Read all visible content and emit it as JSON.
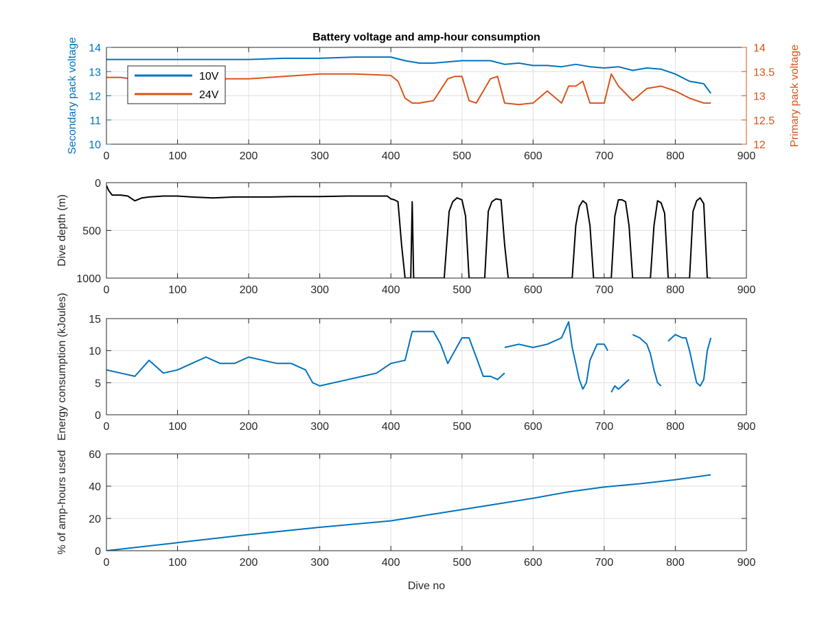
{
  "figure": {
    "title": "Battery voltage and amp-hour consumption",
    "xlabel": "Dive no"
  },
  "colors": {
    "blue": "#0072BD",
    "orange": "#D95319",
    "black": "#000000",
    "grid": "#DFDFDF",
    "axis": "#262626"
  },
  "chart_data": [
    {
      "type": "line",
      "title": "Battery voltage and amp-hour consumption",
      "xlim": [
        0,
        900
      ],
      "xticks": [
        0,
        100,
        200,
        300,
        400,
        500,
        600,
        700,
        800,
        900
      ],
      "ylabel": "Secondary pack voltage",
      "ylim": [
        10,
        14
      ],
      "yticks": [
        10,
        11,
        12,
        13,
        14
      ],
      "ylabel_right": "Primary pack voltage",
      "ylim_right": [
        12,
        14
      ],
      "yticks_right": [
        12,
        12.5,
        13,
        13.5,
        14
      ],
      "legend": {
        "placement": "top-left",
        "entries": [
          "10V",
          "24V"
        ]
      },
      "grid": true,
      "series": [
        {
          "name": "10V",
          "axis": "left",
          "color": "#0072BD",
          "x": [
            0,
            20,
            50,
            100,
            150,
            200,
            250,
            300,
            350,
            400,
            420,
            440,
            460,
            480,
            500,
            520,
            540,
            560,
            580,
            600,
            620,
            640,
            660,
            680,
            700,
            720,
            740,
            760,
            780,
            800,
            820,
            840,
            850
          ],
          "y": [
            13.5,
            13.5,
            13.5,
            13.5,
            13.5,
            13.5,
            13.55,
            13.55,
            13.6,
            13.6,
            13.45,
            13.35,
            13.35,
            13.4,
            13.45,
            13.45,
            13.45,
            13.3,
            13.35,
            13.25,
            13.25,
            13.2,
            13.3,
            13.2,
            13.15,
            13.2,
            13.05,
            13.15,
            13.1,
            12.9,
            12.6,
            12.5,
            12.1
          ]
        },
        {
          "name": "24V",
          "axis": "right",
          "color": "#D95319",
          "x": [
            0,
            20,
            50,
            100,
            150,
            200,
            250,
            300,
            350,
            400,
            410,
            420,
            430,
            440,
            460,
            480,
            490,
            500,
            510,
            520,
            540,
            550,
            560,
            580,
            600,
            620,
            640,
            650,
            660,
            670,
            680,
            700,
            710,
            720,
            740,
            760,
            780,
            800,
            820,
            840,
            850
          ],
          "y": [
            13.38,
            13.38,
            13.32,
            13.35,
            13.35,
            13.35,
            13.4,
            13.45,
            13.45,
            13.42,
            13.3,
            12.95,
            12.85,
            12.85,
            12.9,
            13.35,
            13.4,
            13.4,
            12.9,
            12.85,
            13.35,
            13.4,
            12.85,
            12.82,
            12.85,
            13.1,
            12.85,
            13.2,
            13.2,
            13.3,
            12.85,
            12.85,
            13.45,
            13.2,
            12.9,
            13.15,
            13.2,
            13.1,
            12.95,
            12.85,
            12.85
          ]
        }
      ]
    },
    {
      "type": "line",
      "ylabel": "Dive depth (m)",
      "xlim": [
        0,
        900
      ],
      "xticks": [
        0,
        100,
        200,
        300,
        400,
        500,
        600,
        700,
        800,
        900
      ],
      "ylim": [
        0,
        1000
      ],
      "y_reversed": true,
      "yticks": [
        0,
        500,
        1000
      ],
      "grid": true,
      "series": [
        {
          "color": "#000000",
          "x": [
            0,
            3,
            8,
            20,
            30,
            40,
            50,
            60,
            80,
            100,
            120,
            150,
            180,
            200,
            230,
            260,
            300,
            340,
            380,
            395,
            400,
            405,
            410,
            415,
            420,
            425,
            428,
            430,
            432,
            435,
            440,
            460,
            475,
            482,
            487,
            493,
            500,
            505,
            510,
            515,
            520,
            532,
            537,
            542,
            548,
            555,
            560,
            565,
            600,
            640,
            655,
            660,
            665,
            670,
            675,
            680,
            685,
            700,
            710,
            715,
            720,
            725,
            730,
            735,
            740,
            765,
            770,
            775,
            780,
            785,
            790,
            795,
            800,
            820,
            825,
            830,
            835,
            840,
            845,
            850
          ],
          "y": [
            30,
            80,
            130,
            130,
            140,
            190,
            160,
            150,
            140,
            140,
            150,
            160,
            150,
            150,
            150,
            145,
            145,
            140,
            140,
            140,
            170,
            180,
            200,
            650,
            1000,
            1000,
            1000,
            200,
            1000,
            1000,
            1000,
            1000,
            1000,
            300,
            200,
            160,
            180,
            350,
            1000,
            1000,
            1000,
            1000,
            300,
            200,
            170,
            180,
            650,
            1000,
            1000,
            1000,
            1000,
            450,
            250,
            190,
            220,
            450,
            1000,
            1000,
            1000,
            350,
            180,
            180,
            200,
            450,
            1000,
            1000,
            450,
            190,
            210,
            320,
            1000,
            1000,
            1000,
            1000,
            300,
            190,
            160,
            220,
            1000,
            1000
          ]
        }
      ]
    },
    {
      "type": "line",
      "ylabel": "Energy consumption (kJoules)",
      "xlim": [
        0,
        900
      ],
      "xticks": [
        0,
        100,
        200,
        300,
        400,
        500,
        600,
        700,
        800,
        900
      ],
      "ylim": [
        0,
        15
      ],
      "yticks": [
        0,
        5,
        10,
        15
      ],
      "grid": true,
      "series": [
        {
          "color": "#0072BD",
          "segments": [
            {
              "x": [
                0,
                20,
                40,
                60,
                80,
                100,
                120,
                140,
                160,
                180,
                200,
                220,
                240,
                260,
                280,
                290,
                300,
                320,
                340,
                360,
                380,
                400,
                420,
                430,
                432,
                440,
                460,
                470,
                480,
                490,
                500,
                510,
                520,
                530,
                540,
                550,
                560
              ],
              "y": [
                7,
                6.5,
                6,
                8.5,
                6.5,
                7,
                8,
                9,
                8,
                8,
                9,
                8.5,
                8,
                8,
                7,
                5,
                4.5,
                5,
                5.5,
                6,
                6.5,
                8,
                8.5,
                13,
                13,
                13,
                13,
                11,
                8,
                10,
                12,
                12,
                9,
                6,
                6,
                5.5,
                6.5
              ]
            },
            {
              "x": [
                560,
                580,
                600,
                620,
                640,
                650,
                655,
                660,
                665,
                670,
                675,
                680,
                690,
                700,
                705
              ],
              "y": [
                10.5,
                11,
                10.5,
                11,
                12,
                14.5,
                10.5,
                8,
                5.5,
                4,
                5,
                8.5,
                11,
                11,
                10
              ]
            },
            {
              "x": [
                710,
                715,
                720,
                730,
                735
              ],
              "y": [
                3.5,
                4.5,
                4,
                5,
                5.5
              ]
            },
            {
              "x": [
                740,
                750,
                760,
                765,
                770,
                775,
                780
              ],
              "y": [
                12.5,
                12,
                11,
                9.5,
                7,
                5,
                4.5
              ]
            },
            {
              "x": [
                790,
                800,
                810,
                815,
                820,
                825,
                830,
                835,
                840,
                845,
                850
              ],
              "y": [
                11.5,
                12.5,
                12,
                12,
                10,
                7.5,
                5,
                4.5,
                5.5,
                10,
                12
              ]
            }
          ]
        }
      ]
    },
    {
      "type": "line",
      "ylabel": "% of amp-hours used",
      "xlabel": "Dive no",
      "xlim": [
        0,
        900
      ],
      "xticks": [
        0,
        100,
        200,
        300,
        400,
        500,
        600,
        700,
        800,
        900
      ],
      "ylim": [
        0,
        60
      ],
      "yticks": [
        0,
        20,
        40,
        60
      ],
      "grid": true,
      "series": [
        {
          "color": "#0072BD",
          "x": [
            0,
            100,
            200,
            300,
            400,
            450,
            500,
            550,
            600,
            650,
            700,
            750,
            800,
            850
          ],
          "y": [
            0,
            5,
            10,
            14.5,
            18.5,
            22,
            25.5,
            29,
            32.5,
            36.5,
            39.5,
            41.5,
            44,
            47
          ]
        }
      ]
    }
  ]
}
